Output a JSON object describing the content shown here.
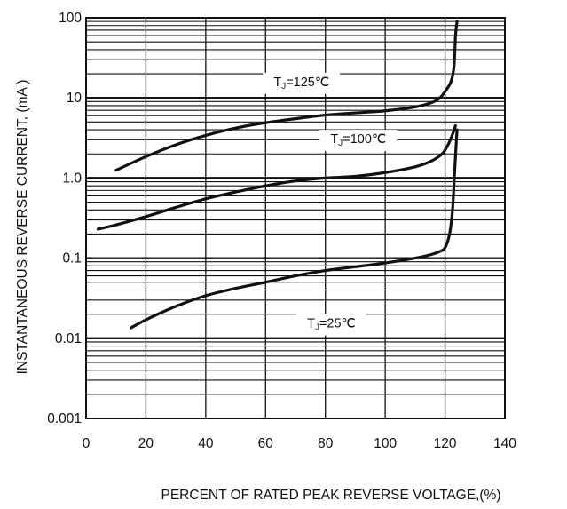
{
  "chart_data": {
    "type": "line",
    "title": "",
    "xlabel": "PERCENT OF RATED PEAK REVERSE VOLTAGE,(%)",
    "ylabel": "INSTANTANEOUS REVERSE CURRENT, (mA )",
    "xlim": [
      0,
      140
    ],
    "ylim": [
      0.001,
      100
    ],
    "y_scale": "log",
    "grid": true,
    "x_ticks": [
      0,
      20,
      40,
      60,
      80,
      100,
      120,
      140
    ],
    "x_tick_labels": [
      "0",
      "20",
      "40",
      "60",
      "80",
      "100",
      "120",
      "140"
    ],
    "y_ticks": [
      0.001,
      0.01,
      0.1,
      1,
      10,
      100
    ],
    "y_tick_labels": [
      "0.001",
      "0.01",
      "0.1",
      "1.0",
      "10",
      "100"
    ],
    "series": [
      {
        "name_main": "T",
        "name_sub": "J",
        "name_rest": "=125℃",
        "label_at": [
          72,
          16
        ],
        "x": [
          10,
          20,
          30,
          40,
          50,
          60,
          70,
          80,
          90,
          100,
          110,
          115,
          118,
          120,
          122,
          123,
          123.5,
          124
        ],
        "y": [
          1.25,
          1.85,
          2.6,
          3.4,
          4.2,
          4.9,
          5.5,
          6.1,
          6.5,
          6.9,
          7.7,
          8.6,
          9.8,
          12,
          16,
          25,
          60,
          90
        ]
      },
      {
        "name_main": "T",
        "name_sub": "J",
        "name_rest": "=100℃",
        "label_at": [
          91,
          3.1
        ],
        "x": [
          4,
          10,
          20,
          30,
          40,
          50,
          60,
          70,
          80,
          90,
          100,
          110,
          115,
          119,
          121,
          122.5,
          123.5
        ],
        "y": [
          0.23,
          0.26,
          0.33,
          0.43,
          0.55,
          0.67,
          0.8,
          0.92,
          1.0,
          1.05,
          1.17,
          1.38,
          1.6,
          2.0,
          2.6,
          3.5,
          4.5
        ]
      },
      {
        "name_main": "T",
        "name_sub": "J",
        "name_rest": "=25℃",
        "label_at": [
          82,
          0.0155
        ],
        "x": [
          15,
          20,
          30,
          40,
          50,
          60,
          70,
          80,
          90,
          100,
          110,
          115,
          118,
          120,
          121.5,
          122.5,
          123.2,
          124
        ],
        "y": [
          0.0135,
          0.017,
          0.025,
          0.034,
          0.042,
          0.05,
          0.06,
          0.07,
          0.078,
          0.087,
          0.1,
          0.11,
          0.12,
          0.135,
          0.2,
          0.4,
          1.2,
          4
        ]
      }
    ]
  }
}
